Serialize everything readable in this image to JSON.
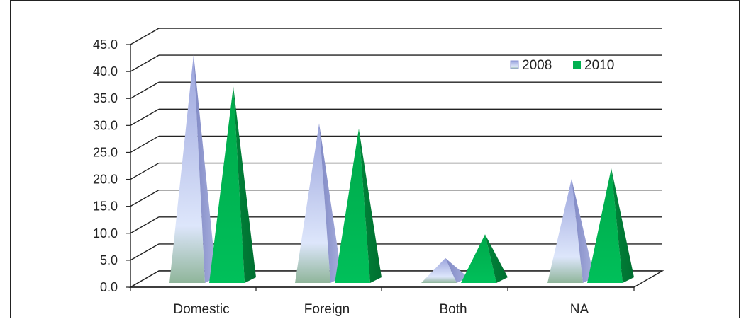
{
  "chart_data": {
    "type": "bar",
    "style": "3d-pyramid",
    "categories": [
      "Domestic",
      "Foreign",
      "Both",
      "NA"
    ],
    "series": [
      {
        "name": "2008",
        "values": [
          44.0,
          31.0,
          5.5,
          20.5
        ],
        "color": "#8c96d4"
      },
      {
        "name": "2010",
        "values": [
          38.0,
          30.0,
          10.0,
          22.5
        ],
        "color": "#00b050"
      }
    ],
    "yticks": [
      "0.0",
      "5.0",
      "10.0",
      "15.0",
      "20.0",
      "25.0",
      "30.0",
      "35.0",
      "40.0",
      "45.0"
    ],
    "ylim": [
      0,
      45
    ],
    "grid": true,
    "legend_position": "top-right",
    "title": "",
    "xlabel": "",
    "ylabel": ""
  }
}
